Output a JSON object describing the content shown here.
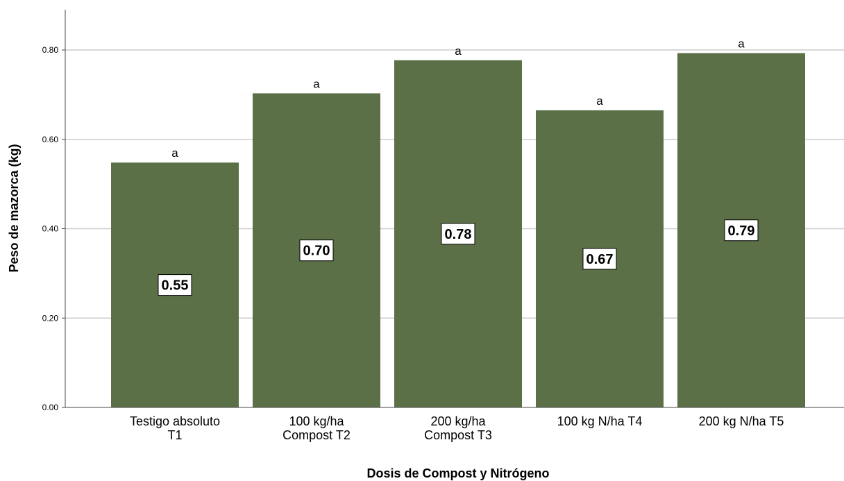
{
  "chart_data": {
    "type": "bar",
    "title": "",
    "xlabel": "Dosis de Compost y Nitrógeno",
    "ylabel": "Peso de mazorca (kg)",
    "ylim": [
      0,
      0.88
    ],
    "yticks": [
      "0.00",
      "0.20",
      "0.40",
      "0.60",
      "0.80"
    ],
    "grid": true,
    "bar_color": "#5c7048",
    "categories": [
      [
        "Testigo absoluto",
        "T1"
      ],
      [
        "100 kg/ha",
        "Compost T2"
      ],
      [
        "200 kg/ha",
        "Compost T3"
      ],
      [
        "100 kg N/ha  T4"
      ],
      [
        "200 kg N/ha  T5"
      ]
    ],
    "values": [
      0.548,
      0.703,
      0.777,
      0.665,
      0.793
    ],
    "value_labels": [
      "0.55",
      "0.70",
      "0.78",
      "0.67",
      "0.79"
    ],
    "significance": [
      "a",
      "a",
      "a",
      "a",
      "a"
    ]
  }
}
